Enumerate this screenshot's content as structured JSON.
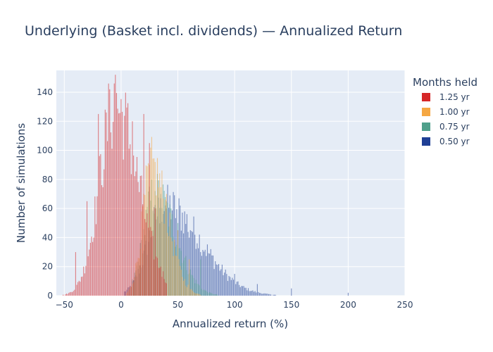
{
  "chart_data": {
    "type": "bar",
    "title": "Underlying (Basket incl. dividends) — Annualized Return",
    "xlabel": "Annualized return (%)",
    "ylabel": "Number of simulations",
    "xlim": [
      -57,
      250
    ],
    "ylim": [
      0,
      155
    ],
    "xticks": [
      -50,
      0,
      50,
      100,
      150,
      200,
      250
    ],
    "yticks": [
      0,
      20,
      40,
      60,
      80,
      100,
      120,
      140
    ],
    "grid": true,
    "barmode": "overlay",
    "bin_width": 1,
    "legend": {
      "title": "Months held",
      "placement": "right"
    },
    "series": [
      {
        "name": "1.25 yr",
        "color": "#d62728",
        "opacity": 0.55,
        "dist": {
          "min": -57,
          "max": 40,
          "peak": -5,
          "peak_count": 130,
          "sigma_left": 14,
          "sigma_right": 20
        },
        "notable_bins": [
          [
            -10,
            142
          ],
          [
            -5,
            152
          ],
          [
            -6,
            146
          ],
          [
            10,
            120
          ],
          [
            -20,
            125
          ],
          [
            -30,
            65
          ],
          [
            -40,
            30
          ],
          [
            20,
            125
          ],
          [
            25,
            105
          ],
          [
            30,
            60
          ],
          [
            35,
            20
          ]
        ]
      },
      {
        "name": "1.00 yr",
        "color": "#f5a742",
        "opacity": 0.55,
        "dist": {
          "min": 5,
          "max": 70,
          "peak": 27,
          "peak_count": 88,
          "sigma_left": 8,
          "sigma_right": 14
        },
        "notable_bins": [
          [
            25,
            90
          ],
          [
            30,
            92
          ],
          [
            20,
            70
          ],
          [
            40,
            70
          ],
          [
            50,
            45
          ],
          [
            60,
            25
          ]
        ]
      },
      {
        "name": "0.75 yr",
        "color": "#4fa08b",
        "opacity": 0.55,
        "dist": {
          "min": 10,
          "max": 90,
          "peak": 30,
          "peak_count": 70,
          "sigma_left": 10,
          "sigma_right": 18
        },
        "notable_bins": [
          [
            25,
            75
          ],
          [
            30,
            72
          ],
          [
            35,
            70
          ],
          [
            40,
            65
          ],
          [
            50,
            50
          ],
          [
            70,
            25
          ]
        ]
      },
      {
        "name": "0.50 yr",
        "color": "#1f3f95",
        "opacity": 0.55,
        "dist": {
          "min": 3,
          "max": 240,
          "peak": 38,
          "peak_count": 62,
          "sigma_left": 14,
          "sigma_right": 32
        },
        "notable_bins": [
          [
            35,
            67
          ],
          [
            40,
            60
          ],
          [
            50,
            45
          ],
          [
            60,
            40
          ],
          [
            70,
            30
          ],
          [
            100,
            15
          ],
          [
            120,
            8
          ],
          [
            150,
            5
          ],
          [
            200,
            2
          ]
        ]
      }
    ]
  }
}
